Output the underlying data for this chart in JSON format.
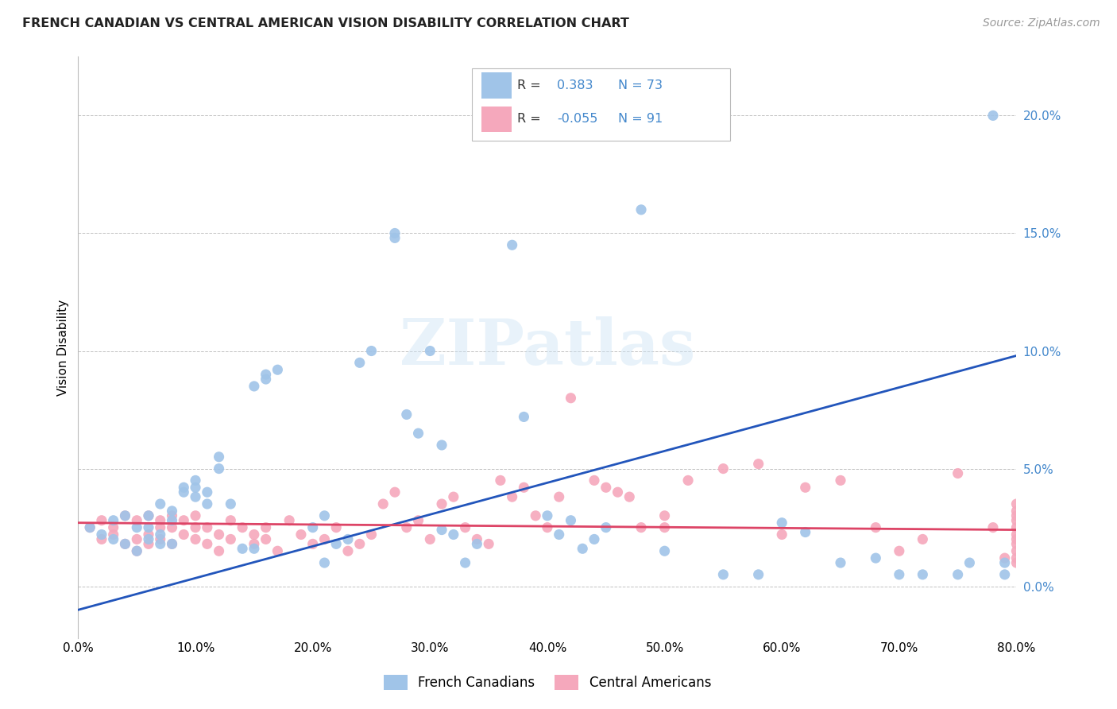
{
  "title": "FRENCH CANADIAN VS CENTRAL AMERICAN VISION DISABILITY CORRELATION CHART",
  "source": "Source: ZipAtlas.com",
  "ylabel": "Vision Disability",
  "xlim": [
    0.0,
    0.8
  ],
  "ylim": [
    -0.022,
    0.225
  ],
  "yticks": [
    0.0,
    0.05,
    0.1,
    0.15,
    0.2
  ],
  "xticks": [
    0.0,
    0.1,
    0.2,
    0.3,
    0.4,
    0.5,
    0.6,
    0.7,
    0.8
  ],
  "R_blue": "0.383",
  "N_blue": "73",
  "R_pink": "-0.055",
  "N_pink": "91",
  "blue_color": "#a0c4e8",
  "pink_color": "#f5a8bc",
  "blue_line_color": "#2255bb",
  "pink_line_color": "#dd4466",
  "blue_tick_color": "#4488cc",
  "watermark_text": "ZIPatlas",
  "legend_labels": [
    "French Canadians",
    "Central Americans"
  ],
  "blue_line_x0": 0.0,
  "blue_line_y0": -0.01,
  "blue_line_x1": 0.8,
  "blue_line_y1": 0.098,
  "pink_line_x0": 0.0,
  "pink_line_y0": 0.027,
  "pink_line_x1": 0.8,
  "pink_line_y1": 0.024,
  "blue_scatter_x": [
    0.01,
    0.02,
    0.03,
    0.03,
    0.04,
    0.04,
    0.05,
    0.05,
    0.06,
    0.06,
    0.06,
    0.07,
    0.07,
    0.07,
    0.08,
    0.08,
    0.08,
    0.09,
    0.09,
    0.1,
    0.1,
    0.1,
    0.11,
    0.11,
    0.12,
    0.12,
    0.13,
    0.14,
    0.15,
    0.15,
    0.16,
    0.16,
    0.17,
    0.2,
    0.21,
    0.21,
    0.22,
    0.23,
    0.24,
    0.25,
    0.27,
    0.27,
    0.28,
    0.29,
    0.3,
    0.31,
    0.31,
    0.32,
    0.33,
    0.34,
    0.37,
    0.38,
    0.4,
    0.41,
    0.42,
    0.43,
    0.44,
    0.45,
    0.48,
    0.5,
    0.55,
    0.58,
    0.6,
    0.62,
    0.65,
    0.68,
    0.7,
    0.72,
    0.75,
    0.76,
    0.78,
    0.79,
    0.79
  ],
  "blue_scatter_y": [
    0.025,
    0.022,
    0.02,
    0.028,
    0.018,
    0.03,
    0.015,
    0.025,
    0.02,
    0.025,
    0.03,
    0.018,
    0.022,
    0.035,
    0.028,
    0.018,
    0.032,
    0.04,
    0.042,
    0.038,
    0.042,
    0.045,
    0.035,
    0.04,
    0.05,
    0.055,
    0.035,
    0.016,
    0.016,
    0.085,
    0.088,
    0.09,
    0.092,
    0.025,
    0.03,
    0.01,
    0.018,
    0.02,
    0.095,
    0.1,
    0.15,
    0.148,
    0.073,
    0.065,
    0.1,
    0.06,
    0.024,
    0.022,
    0.01,
    0.018,
    0.145,
    0.072,
    0.03,
    0.022,
    0.028,
    0.016,
    0.02,
    0.025,
    0.16,
    0.015,
    0.005,
    0.005,
    0.027,
    0.023,
    0.01,
    0.012,
    0.005,
    0.005,
    0.005,
    0.01,
    0.2,
    0.01,
    0.005
  ],
  "pink_scatter_x": [
    0.01,
    0.02,
    0.02,
    0.03,
    0.03,
    0.04,
    0.04,
    0.05,
    0.05,
    0.05,
    0.06,
    0.06,
    0.06,
    0.07,
    0.07,
    0.07,
    0.08,
    0.08,
    0.08,
    0.09,
    0.09,
    0.1,
    0.1,
    0.1,
    0.11,
    0.11,
    0.12,
    0.12,
    0.13,
    0.13,
    0.14,
    0.15,
    0.15,
    0.16,
    0.16,
    0.17,
    0.18,
    0.19,
    0.2,
    0.21,
    0.22,
    0.23,
    0.24,
    0.25,
    0.26,
    0.27,
    0.28,
    0.29,
    0.3,
    0.31,
    0.32,
    0.33,
    0.34,
    0.35,
    0.36,
    0.37,
    0.38,
    0.39,
    0.4,
    0.41,
    0.42,
    0.44,
    0.45,
    0.46,
    0.47,
    0.48,
    0.5,
    0.5,
    0.52,
    0.55,
    0.58,
    0.6,
    0.62,
    0.65,
    0.68,
    0.7,
    0.72,
    0.75,
    0.78,
    0.79,
    0.8,
    0.8,
    0.8,
    0.8,
    0.8,
    0.8,
    0.8,
    0.8,
    0.8,
    0.8,
    0.8
  ],
  "pink_scatter_y": [
    0.025,
    0.02,
    0.028,
    0.025,
    0.022,
    0.018,
    0.03,
    0.02,
    0.028,
    0.015,
    0.022,
    0.03,
    0.018,
    0.025,
    0.02,
    0.028,
    0.018,
    0.025,
    0.03,
    0.022,
    0.028,
    0.02,
    0.025,
    0.03,
    0.018,
    0.025,
    0.015,
    0.022,
    0.02,
    0.028,
    0.025,
    0.018,
    0.022,
    0.02,
    0.025,
    0.015,
    0.028,
    0.022,
    0.018,
    0.02,
    0.025,
    0.015,
    0.018,
    0.022,
    0.035,
    0.04,
    0.025,
    0.028,
    0.02,
    0.035,
    0.038,
    0.025,
    0.02,
    0.018,
    0.045,
    0.038,
    0.042,
    0.03,
    0.025,
    0.038,
    0.08,
    0.045,
    0.042,
    0.04,
    0.038,
    0.025,
    0.025,
    0.03,
    0.045,
    0.05,
    0.052,
    0.022,
    0.042,
    0.045,
    0.025,
    0.015,
    0.02,
    0.048,
    0.025,
    0.012,
    0.01,
    0.015,
    0.018,
    0.02,
    0.022,
    0.025,
    0.028,
    0.03,
    0.032,
    0.035,
    0.012
  ]
}
